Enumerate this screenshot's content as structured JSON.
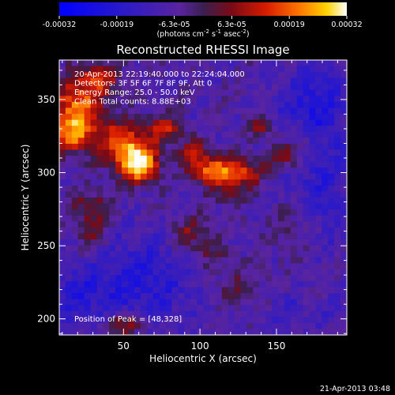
{
  "chart_data": {
    "type": "heatmap",
    "title": "Reconstructed RHESSI Image",
    "xlabel": "Heliocentric X (arcsec)",
    "ylabel": "Heliocentric Y (arcsec)",
    "xlim": [
      8,
      196
    ],
    "ylim": [
      189,
      377
    ],
    "x_ticks": [
      50,
      100,
      150
    ],
    "y_ticks": [
      200,
      250,
      300,
      350
    ],
    "colorbar": {
      "ticks": [
        "-0.00032",
        "-0.00019",
        "-6.3e-05",
        "6.3e-05",
        "0.00019",
        "0.00032"
      ],
      "range": [
        -0.00032,
        0.00032
      ],
      "unit_label": "(photons cm",
      "unit_sup1": "-2",
      "unit_mid": " s",
      "unit_sup2": "-1",
      "unit_mid2": " asec",
      "unit_sup3": "-2",
      "unit_end": ")"
    },
    "annotations": [
      "20-Apr-2013 22:19:40.000 to 22:24:04.000",
      "Detectors: 3F 5F 6F 7F 8F 9F, Att 0",
      "Energy Range: 25.0 - 50.0 keV",
      "Clean     Total counts: 8.88E+03"
    ],
    "peak_label": "Position of Peak = [48,328]",
    "blobs": [
      {
        "x": 60,
        "y": 305,
        "v": 0.00032,
        "sx": 9,
        "sy": 9
      },
      {
        "x": 50,
        "y": 320,
        "v": 0.00024,
        "sx": 12,
        "sy": 10
      },
      {
        "x": 20,
        "y": 345,
        "v": 0.00026,
        "sx": 12,
        "sy": 14
      },
      {
        "x": 15,
        "y": 325,
        "v": 0.00018,
        "sx": 10,
        "sy": 8
      },
      {
        "x": 35,
        "y": 365,
        "v": 0.00014,
        "sx": 10,
        "sy": 7
      },
      {
        "x": 78,
        "y": 330,
        "v": 0.00016,
        "sx": 8,
        "sy": 6
      },
      {
        "x": 108,
        "y": 302,
        "v": 0.00025,
        "sx": 10,
        "sy": 7
      },
      {
        "x": 128,
        "y": 300,
        "v": 0.00018,
        "sx": 9,
        "sy": 7
      },
      {
        "x": 95,
        "y": 315,
        "v": 0.00013,
        "sx": 7,
        "sy": 6
      },
      {
        "x": 155,
        "y": 310,
        "v": 0.00014,
        "sx": 7,
        "sy": 6
      },
      {
        "x": 140,
        "y": 330,
        "v": 0.00011,
        "sx": 6,
        "sy": 6
      },
      {
        "x": 168,
        "y": 320,
        "v": 0.0001,
        "sx": 8,
        "sy": 8
      },
      {
        "x": 30,
        "y": 275,
        "v": 0.00013,
        "sx": 9,
        "sy": 9
      },
      {
        "x": 30,
        "y": 255,
        "v": 8e-05,
        "sx": 7,
        "sy": 7
      },
      {
        "x": 95,
        "y": 258,
        "v": 0.00012,
        "sx": 9,
        "sy": 8
      },
      {
        "x": 118,
        "y": 285,
        "v": 8e-05,
        "sx": 7,
        "sy": 6
      },
      {
        "x": 108,
        "y": 244,
        "v": 6e-05,
        "sx": 8,
        "sy": 6
      },
      {
        "x": 160,
        "y": 260,
        "v": 5e-05,
        "sx": 10,
        "sy": 12
      },
      {
        "x": 125,
        "y": 222,
        "v": 6e-05,
        "sx": 14,
        "sy": 10
      },
      {
        "x": 50,
        "y": 196,
        "v": 0.00016,
        "sx": 10,
        "sy": 5
      },
      {
        "x": 60,
        "y": 225,
        "v": -0.00012,
        "sx": 28,
        "sy": 22
      },
      {
        "x": 175,
        "y": 340,
        "v": -0.00014,
        "sx": 16,
        "sy": 26
      },
      {
        "x": 180,
        "y": 280,
        "v": -8e-05,
        "sx": 14,
        "sy": 22
      },
      {
        "x": 20,
        "y": 215,
        "v": -8e-05,
        "sx": 14,
        "sy": 12
      },
      {
        "x": 160,
        "y": 205,
        "v": -5e-05,
        "sx": 20,
        "sy": 10
      }
    ]
  },
  "footer": {
    "timestamp": "21-Apr-2013 03:48"
  }
}
